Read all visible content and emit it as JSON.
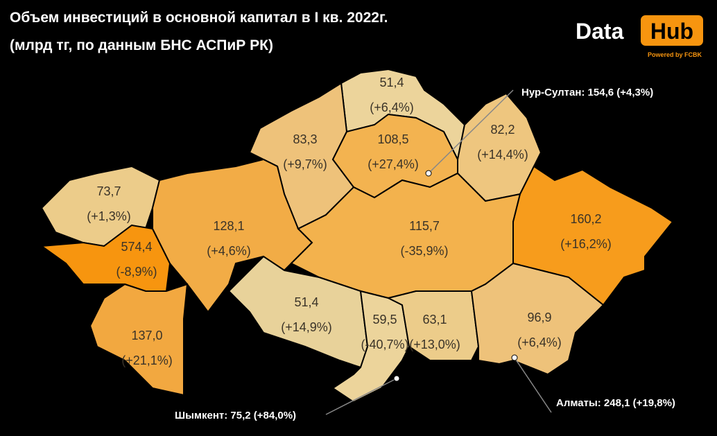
{
  "header": {
    "title": "Объем инвестиций в основной капитал в I кв. 2022г.",
    "subtitle": "(млрд тг, по данным БНС АСПиР РК)"
  },
  "logo": {
    "word1": "Data",
    "word2": "Hub",
    "tagline": "Powered by FCBK"
  },
  "regions": [
    {
      "value": "51,4",
      "change": "(+6,4%)"
    },
    {
      "value": "83,3",
      "change": "(+9,7%)"
    },
    {
      "value": "108,5",
      "change": "(+27,4%)"
    },
    {
      "value": "82,2",
      "change": "(+14,4%)"
    },
    {
      "value": "73,7",
      "change": "(+1,3%)"
    },
    {
      "value": "574,4",
      "change": "(-8,9%)"
    },
    {
      "value": "128,1",
      "change": "(+4,6%)"
    },
    {
      "value": "137,0",
      "change": "(+21,1%)"
    },
    {
      "value": "115,7",
      "change": "(-35,9%)"
    },
    {
      "value": "160,2",
      "change": "(+16,2%)"
    },
    {
      "value": "51,4",
      "change": "(+14,9%)"
    },
    {
      "value": "59,5",
      "change": "(-40,7%)"
    },
    {
      "value": "63,1",
      "change": "(+13,0%)"
    },
    {
      "value": "96,9",
      "change": "(+6,4%)"
    }
  ],
  "cities": [
    {
      "label": "Нур-Султан: 154,6 (+4,3%)"
    },
    {
      "label": "Шымкент: 75,2 (+84,0%)"
    },
    {
      "label": "Алматы: 248,1 (+19,8%)"
    }
  ]
}
